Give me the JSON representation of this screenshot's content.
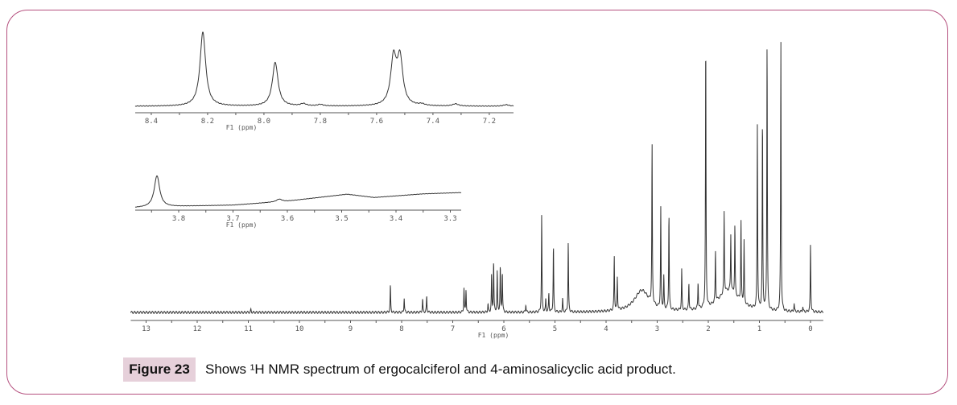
{
  "figure": {
    "label": "Figure 23",
    "caption": "Shows ¹H NMR spectrum of ergocalciferol and 4-aminosalicyclic acid product.",
    "border_color": "#b5517f",
    "label_bg": "#e6d0da"
  },
  "chart_data": [
    {
      "type": "line",
      "id": "main",
      "xlabel": "F1 (ppm)",
      "xlim": [
        13.3,
        -0.25
      ],
      "x_reversed": true,
      "ticks": [
        "13",
        "12",
        "11",
        "10",
        "9",
        "8",
        "7",
        "6",
        "5",
        "4",
        "3",
        "2",
        "1",
        "0"
      ],
      "tick_values": [
        13,
        12,
        11,
        10,
        9,
        8,
        7,
        6,
        5,
        4,
        3,
        2,
        1,
        0
      ],
      "line_color": "#333333",
      "peaks_ppm_height": [
        [
          10.95,
          0.01
        ],
        [
          8.22,
          0.1
        ],
        [
          7.95,
          0.054
        ],
        [
          7.59,
          0.05
        ],
        [
          7.51,
          0.06
        ],
        [
          6.78,
          0.09
        ],
        [
          6.74,
          0.085
        ],
        [
          6.31,
          0.03
        ],
        [
          6.24,
          0.135
        ],
        [
          6.2,
          0.19
        ],
        [
          6.13,
          0.15
        ],
        [
          6.07,
          0.17
        ],
        [
          6.03,
          0.15
        ],
        [
          5.57,
          0.03
        ],
        [
          5.26,
          0.36
        ],
        [
          5.18,
          0.05
        ],
        [
          5.12,
          0.07
        ],
        [
          5.03,
          0.25
        ],
        [
          4.85,
          0.05
        ],
        [
          4.74,
          0.26
        ],
        [
          3.84,
          0.2
        ],
        [
          3.78,
          0.12
        ],
        [
          3.1,
          0.59
        ],
        [
          2.93,
          0.37
        ],
        [
          2.87,
          0.12
        ],
        [
          2.77,
          0.36
        ],
        [
          2.52,
          0.15
        ],
        [
          2.38,
          0.1
        ],
        [
          2.2,
          0.1
        ],
        [
          2.05,
          1.0
        ],
        [
          1.86,
          0.19
        ],
        [
          1.69,
          0.3
        ],
        [
          1.56,
          0.21
        ],
        [
          1.48,
          0.26
        ],
        [
          1.36,
          0.3
        ],
        [
          1.3,
          0.23
        ],
        [
          1.04,
          0.68
        ],
        [
          0.94,
          0.71
        ],
        [
          0.85,
          1.0
        ],
        [
          0.58,
          1.0
        ],
        [
          0.32,
          0.03
        ],
        [
          0.15,
          0.02
        ],
        [
          0.0,
          0.25
        ]
      ],
      "broad_features_ppm_height_width": [
        [
          3.3,
          0.08,
          0.35
        ],
        [
          1.6,
          0.08,
          0.5
        ]
      ]
    },
    {
      "type": "line",
      "id": "inset-aromatic",
      "xlabel": "F1 (ppm)",
      "xlim": [
        8.457,
        7.114
      ],
      "x_reversed": true,
      "ticks": [
        "8.4",
        "8.2",
        "8.0",
        "7.8",
        "7.6",
        "7.4",
        "7.2"
      ],
      "tick_values": [
        8.4,
        8.2,
        8.0,
        7.8,
        7.6,
        7.4,
        7.2
      ],
      "peaks_ppm_height": [
        [
          8.217,
          1.0
        ],
        [
          7.96,
          0.59
        ],
        [
          7.86,
          0.03
        ],
        [
          7.8,
          0.02
        ],
        [
          7.54,
          0.62
        ],
        [
          7.517,
          0.62
        ],
        [
          7.44,
          0.02
        ],
        [
          7.32,
          0.03
        ],
        [
          7.14,
          0.02
        ]
      ]
    },
    {
      "type": "line",
      "id": "inset-3ppm",
      "xlabel": "F1 (ppm)",
      "xlim": [
        3.88,
        3.28
      ],
      "x_reversed": true,
      "ticks": [
        "3.8",
        "3.7",
        "3.6",
        "3.5",
        "3.4",
        "3.3"
      ],
      "tick_values": [
        3.8,
        3.7,
        3.6,
        3.5,
        3.4,
        3.3
      ],
      "peaks_ppm_height": [
        [
          3.84,
          0.95
        ],
        [
          3.615,
          0.08
        ]
      ],
      "baseline_ppm_level": [
        [
          3.88,
          0.0
        ],
        [
          3.78,
          0.05
        ],
        [
          3.7,
          0.08
        ],
        [
          3.6,
          0.2
        ],
        [
          3.49,
          0.41
        ],
        [
          3.44,
          0.31
        ],
        [
          3.35,
          0.42
        ],
        [
          3.28,
          0.46
        ]
      ]
    }
  ]
}
